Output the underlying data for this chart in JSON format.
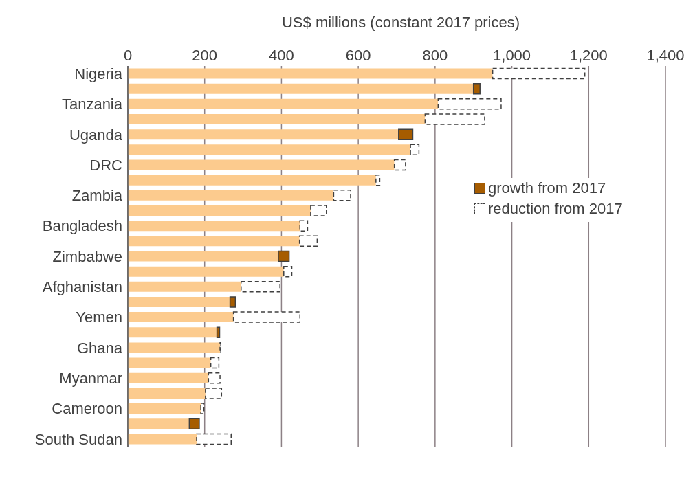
{
  "chart_data": {
    "type": "bar",
    "orientation": "horizontal",
    "stacked": true,
    "xlabel": "US$ millions (constant 2017 prices)",
    "categories": [
      "Nigeria",
      null,
      "Tanzania",
      null,
      "Uganda",
      null,
      "DRC",
      null,
      "Zambia",
      null,
      "Bangladesh",
      null,
      "Zimbabwe",
      null,
      "Afghanistan",
      null,
      "Yemen",
      null,
      "Ghana",
      null,
      "Myanmar",
      null,
      "Cameroon",
      null,
      "South Sudan"
    ],
    "series": [
      {
        "color": "#fccb8e",
        "values": [
          950,
          900,
          808,
          774,
          705,
          736,
          694,
          646,
          536,
          476,
          448,
          447,
          392,
          406,
          295,
          266,
          275,
          232,
          240,
          216,
          210,
          202,
          190,
          160,
          179
        ]
      },
      {
        "name": "growth from 2017",
        "color": "#a65c00",
        "values": [
          null,
          17,
          null,
          null,
          37,
          null,
          null,
          null,
          null,
          null,
          null,
          null,
          28,
          null,
          null,
          14,
          null,
          7,
          null,
          null,
          null,
          null,
          null,
          26,
          null
        ]
      },
      {
        "name": "reduction from 2017",
        "color": "#ffffff",
        "line_style": "dashed",
        "values": [
          240,
          null,
          164,
          155,
          null,
          22,
          29,
          10,
          44,
          41,
          20,
          46,
          null,
          21,
          101,
          null,
          173,
          null,
          2,
          21,
          30,
          42,
          8,
          null,
          90
        ]
      }
    ],
    "xlim": [
      0,
      1400
    ],
    "xticks": [
      0,
      200,
      400,
      600,
      800,
      {
        "value": 1000,
        "label": "1,000"
      },
      {
        "value": 1200,
        "label": "1,200"
      },
      {
        "value": 1400,
        "label": "1,400"
      }
    ],
    "grid": "x",
    "legend": "right"
  }
}
